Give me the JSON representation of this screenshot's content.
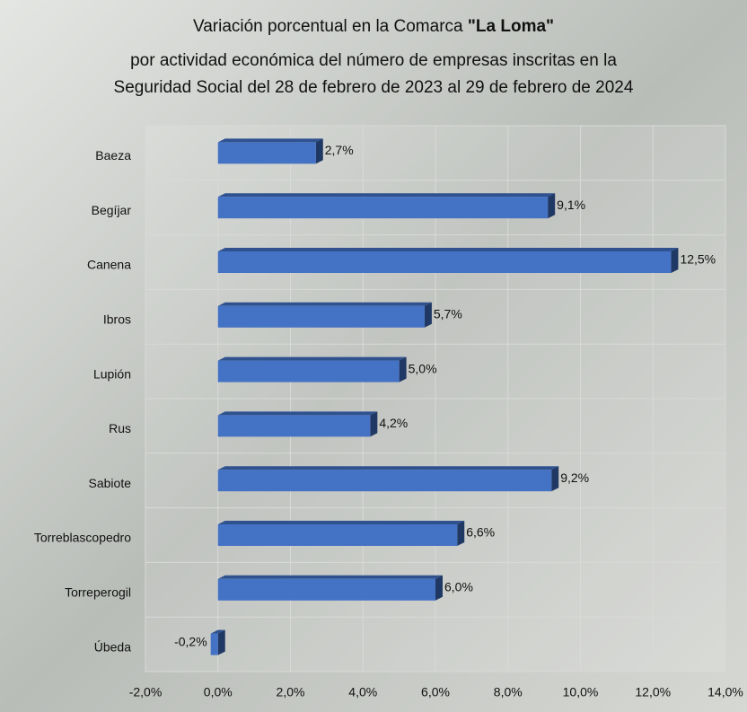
{
  "chart_data": {
    "type": "bar",
    "orientation": "horizontal",
    "title_lines": [
      "Variación porcentual en la Comarca",
      "\"La Loma\"",
      "por actividad económica del número de empresas inscritas en la",
      "Seguridad Social del 28 de febrero de 2023 al 29 de febrero de 2024"
    ],
    "categories": [
      "Baeza",
      "Begíjar",
      "Canena",
      "Ibros",
      "Lupión",
      "Rus",
      "Sabiote",
      "Torreblascopedro",
      "Torreperogil",
      "Úbeda"
    ],
    "values": [
      2.7,
      9.1,
      12.5,
      5.7,
      5.0,
      4.2,
      9.2,
      6.6,
      6.0,
      -0.2
    ],
    "value_labels": [
      "2,7%",
      "9,1%",
      "12,5%",
      "5,7%",
      "5,0%",
      "4,2%",
      "9,2%",
      "6,6%",
      "6,0%",
      "-0,2%"
    ],
    "color": "#4472c4",
    "xlim": [
      -2,
      14
    ],
    "xticks": [
      {
        "value": -2,
        "label": "-2,0%"
      },
      {
        "value": 0,
        "label": "0,0%"
      },
      {
        "value": 2,
        "label": "2,0%"
      },
      {
        "value": 4,
        "label": "4,0%"
      },
      {
        "value": 6,
        "label": "6,0%"
      },
      {
        "value": 8,
        "label": "8,0%"
      },
      {
        "value": 10,
        "label": "10,0%"
      },
      {
        "value": 12,
        "label": "12,0%"
      },
      {
        "value": 14,
        "label": "14,0%"
      }
    ],
    "grid": true
  }
}
